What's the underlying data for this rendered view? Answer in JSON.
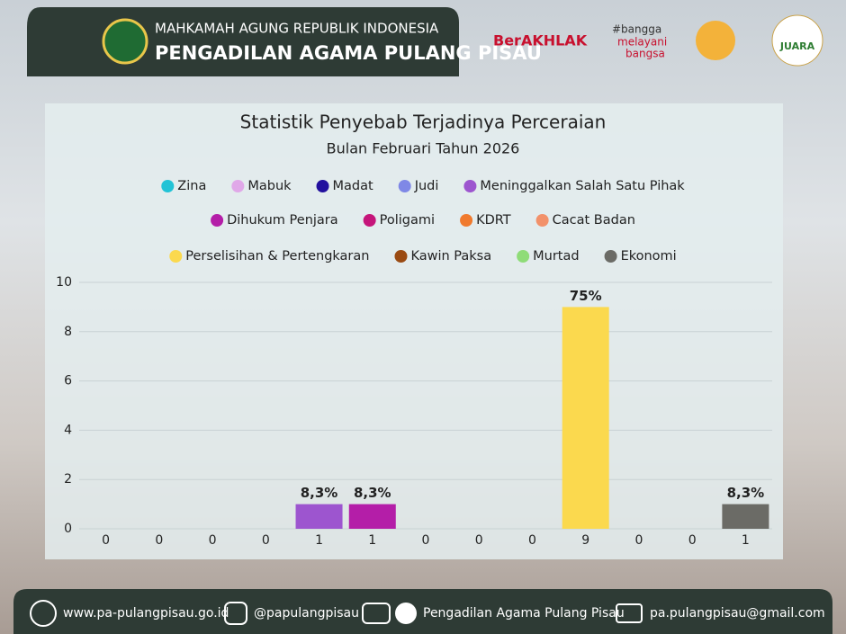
{
  "header": {
    "line1": "MAHKAMAH AGUNG REPUBLIK INDONESIA",
    "line2": "PENGADILAN AGAMA PULANG PISAU",
    "logos": [
      "BerAKHLAK",
      "#bangga",
      "melayani",
      "bangsa",
      "JUARA"
    ]
  },
  "footer": {
    "website": "www.pa-pulangpisau.go.id",
    "instagram": "@papulangpisau",
    "youtube": "Pengadilan Agama Pulang Pisau",
    "email": "pa.pulangpisau@gmail.com"
  },
  "chart_data": {
    "type": "bar",
    "title": "Statistik Penyebab Terjadinya Perceraian",
    "subtitle": "Bulan Februari Tahun 2026",
    "categories": [
      "Zina",
      "Mabuk",
      "Madat",
      "Judi",
      "Meninggalkan Salah Satu Pihak",
      "Dihukum Penjara",
      "Poligami",
      "KDRT",
      "Cacat Badan",
      "Perselisihan & Pertengkaran",
      "Kawin Paksa",
      "Murtad",
      "Ekonomi"
    ],
    "values": [
      0,
      0,
      0,
      0,
      1,
      1,
      0,
      0,
      0,
      9,
      0,
      0,
      1
    ],
    "percentages": [
      null,
      null,
      null,
      null,
      {
        "value": 8.3,
        "label": "8,3%"
      },
      {
        "value": 8.3,
        "label": "8,3%"
      },
      null,
      null,
      null,
      {
        "value": 75,
        "label": "75%"
      },
      null,
      null,
      {
        "value": 8.3,
        "label": "8,3%"
      }
    ],
    "colors": [
      "#22c3d6",
      "#e0a8e8",
      "#22109e",
      "#7f88e6",
      "#9d55cf",
      "#b41ea8",
      "#c5157a",
      "#f07a2e",
      "#f2916a",
      "#fbd94e",
      "#9a4a12",
      "#8fdc78",
      "#6b6b66"
    ],
    "ylim": [
      0,
      10
    ],
    "yticks": [
      0,
      2,
      4,
      6,
      8,
      10
    ],
    "grid": true
  }
}
